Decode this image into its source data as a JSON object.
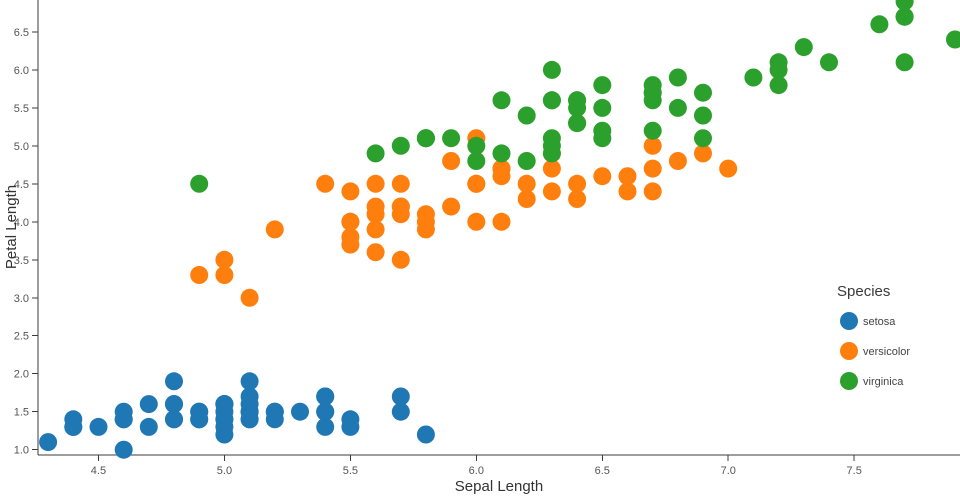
{
  "chart_data": {
    "type": "scatter",
    "title": "",
    "xlabel": "Sepal Length",
    "ylabel": "Petal Length",
    "xlim": [
      4.26,
      7.92
    ],
    "ylim": [
      0.93,
      6.92
    ],
    "x_ticks": [
      4.5,
      5.0,
      5.5,
      6.0,
      6.5,
      7.0,
      7.5
    ],
    "y_ticks": [
      1.0,
      1.5,
      2.0,
      2.5,
      3.0,
      3.5,
      4.0,
      4.5,
      5.0,
      5.5,
      6.0,
      6.5
    ],
    "grid": false,
    "legend": {
      "title": "Species",
      "position": "right-middle"
    },
    "marker_color_names": {
      "setosa": "#1f77b4",
      "versicolor": "#ff7f0e",
      "virginica": "#2ca02c"
    },
    "series": [
      {
        "name": "setosa",
        "color": "#1f77b4",
        "points": [
          [
            5.1,
            1.4
          ],
          [
            4.9,
            1.4
          ],
          [
            4.7,
            1.3
          ],
          [
            4.6,
            1.5
          ],
          [
            5.0,
            1.4
          ],
          [
            5.4,
            1.7
          ],
          [
            4.6,
            1.4
          ],
          [
            5.0,
            1.5
          ],
          [
            4.4,
            1.4
          ],
          [
            4.9,
            1.5
          ],
          [
            5.4,
            1.5
          ],
          [
            4.8,
            1.6
          ],
          [
            4.8,
            1.4
          ],
          [
            4.3,
            1.1
          ],
          [
            5.8,
            1.2
          ],
          [
            5.7,
            1.5
          ],
          [
            5.4,
            1.3
          ],
          [
            5.1,
            1.4
          ],
          [
            5.7,
            1.7
          ],
          [
            5.1,
            1.5
          ],
          [
            5.4,
            1.7
          ],
          [
            5.1,
            1.5
          ],
          [
            4.6,
            1.0
          ],
          [
            5.1,
            1.7
          ],
          [
            4.8,
            1.9
          ],
          [
            5.0,
            1.6
          ],
          [
            5.0,
            1.6
          ],
          [
            5.2,
            1.5
          ],
          [
            5.2,
            1.4
          ],
          [
            4.7,
            1.6
          ],
          [
            4.8,
            1.6
          ],
          [
            5.4,
            1.5
          ],
          [
            5.2,
            1.5
          ],
          [
            5.5,
            1.4
          ],
          [
            4.9,
            1.5
          ],
          [
            5.0,
            1.2
          ],
          [
            5.5,
            1.3
          ],
          [
            4.9,
            1.4
          ],
          [
            4.4,
            1.3
          ],
          [
            5.1,
            1.5
          ],
          [
            5.0,
            1.3
          ],
          [
            4.5,
            1.3
          ],
          [
            4.4,
            1.3
          ],
          [
            5.0,
            1.6
          ],
          [
            5.1,
            1.9
          ],
          [
            4.8,
            1.4
          ],
          [
            5.1,
            1.6
          ],
          [
            4.6,
            1.4
          ],
          [
            5.3,
            1.5
          ],
          [
            5.0,
            1.4
          ]
        ]
      },
      {
        "name": "versicolor",
        "color": "#ff7f0e",
        "points": [
          [
            7.0,
            4.7
          ],
          [
            6.4,
            4.5
          ],
          [
            6.9,
            4.9
          ],
          [
            5.5,
            4.0
          ],
          [
            6.5,
            4.6
          ],
          [
            5.7,
            4.5
          ],
          [
            6.3,
            4.7
          ],
          [
            4.9,
            3.3
          ],
          [
            6.6,
            4.6
          ],
          [
            5.2,
            3.9
          ],
          [
            5.0,
            3.5
          ],
          [
            5.9,
            4.2
          ],
          [
            6.0,
            4.0
          ],
          [
            6.1,
            4.7
          ],
          [
            5.6,
            3.6
          ],
          [
            6.7,
            4.4
          ],
          [
            5.6,
            4.5
          ],
          [
            5.8,
            4.1
          ],
          [
            6.2,
            4.5
          ],
          [
            5.6,
            3.9
          ],
          [
            5.9,
            4.8
          ],
          [
            6.1,
            4.0
          ],
          [
            6.3,
            4.9
          ],
          [
            6.1,
            4.7
          ],
          [
            6.4,
            4.3
          ],
          [
            6.6,
            4.4
          ],
          [
            6.8,
            4.8
          ],
          [
            6.7,
            5.0
          ],
          [
            6.0,
            4.5
          ],
          [
            5.7,
            3.5
          ],
          [
            5.5,
            3.8
          ],
          [
            5.5,
            3.7
          ],
          [
            5.8,
            3.9
          ],
          [
            6.0,
            5.1
          ],
          [
            5.4,
            4.5
          ],
          [
            6.0,
            4.5
          ],
          [
            6.7,
            4.7
          ],
          [
            6.3,
            4.4
          ],
          [
            5.6,
            4.1
          ],
          [
            5.5,
            4.0
          ],
          [
            5.5,
            4.4
          ],
          [
            6.1,
            4.6
          ],
          [
            5.8,
            4.0
          ],
          [
            5.0,
            3.3
          ],
          [
            5.6,
            4.2
          ],
          [
            5.7,
            4.2
          ],
          [
            5.7,
            4.2
          ],
          [
            6.2,
            4.3
          ],
          [
            5.1,
            3.0
          ],
          [
            5.7,
            4.1
          ]
        ]
      },
      {
        "name": "virginica",
        "color": "#2ca02c",
        "points": [
          [
            6.3,
            6.0
          ],
          [
            5.8,
            5.1
          ],
          [
            7.1,
            5.9
          ],
          [
            6.3,
            5.6
          ],
          [
            6.5,
            5.8
          ],
          [
            7.6,
            6.6
          ],
          [
            4.9,
            4.5
          ],
          [
            7.3,
            6.3
          ],
          [
            6.7,
            5.8
          ],
          [
            7.2,
            6.1
          ],
          [
            6.5,
            5.1
          ],
          [
            6.4,
            5.3
          ],
          [
            6.8,
            5.5
          ],
          [
            5.7,
            5.0
          ],
          [
            5.8,
            5.1
          ],
          [
            6.4,
            5.3
          ],
          [
            6.5,
            5.5
          ],
          [
            7.7,
            6.7
          ],
          [
            7.7,
            6.9
          ],
          [
            6.0,
            5.0
          ],
          [
            6.9,
            5.7
          ],
          [
            5.6,
            4.9
          ],
          [
            7.7,
            6.7
          ],
          [
            6.3,
            4.9
          ],
          [
            6.7,
            5.7
          ],
          [
            7.2,
            6.0
          ],
          [
            6.2,
            4.8
          ],
          [
            6.1,
            4.9
          ],
          [
            6.4,
            5.6
          ],
          [
            7.2,
            5.8
          ],
          [
            7.4,
            6.1
          ],
          [
            7.9,
            6.4
          ],
          [
            6.4,
            5.6
          ],
          [
            6.3,
            5.1
          ],
          [
            6.1,
            5.6
          ],
          [
            7.7,
            6.1
          ],
          [
            6.3,
            5.6
          ],
          [
            6.4,
            5.5
          ],
          [
            6.0,
            4.8
          ],
          [
            6.9,
            5.4
          ],
          [
            6.7,
            5.6
          ],
          [
            6.9,
            5.1
          ],
          [
            5.8,
            5.1
          ],
          [
            6.8,
            5.9
          ],
          [
            6.7,
            5.7
          ],
          [
            6.7,
            5.2
          ],
          [
            6.3,
            5.0
          ],
          [
            6.5,
            5.2
          ],
          [
            6.2,
            5.4
          ],
          [
            5.9,
            5.1
          ]
        ]
      }
    ]
  }
}
